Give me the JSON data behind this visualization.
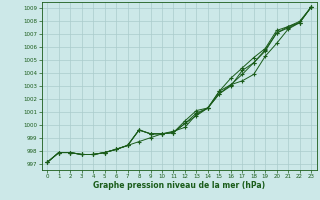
{
  "xlabel": "Graphe pression niveau de la mer (hPa)",
  "ylim": [
    996.5,
    1009.5
  ],
  "xlim": [
    -0.5,
    23.5
  ],
  "yticks": [
    997,
    998,
    999,
    1000,
    1001,
    1002,
    1003,
    1004,
    1005,
    1006,
    1007,
    1008,
    1009
  ],
  "xticks": [
    0,
    1,
    2,
    3,
    4,
    5,
    6,
    7,
    8,
    9,
    10,
    11,
    12,
    13,
    14,
    15,
    16,
    17,
    18,
    19,
    20,
    21,
    22,
    23
  ],
  "bg_color": "#cce8e8",
  "grid_color": "#aacccc",
  "line_color": "#1a5c1a",
  "series1": [
    997.1,
    997.85,
    997.85,
    997.7,
    997.7,
    997.85,
    998.1,
    998.4,
    998.7,
    999.0,
    999.3,
    999.5,
    999.8,
    1000.8,
    1001.3,
    1002.4,
    1003.0,
    1004.2,
    1004.8,
    1005.7,
    1007.1,
    1007.5,
    1007.9,
    1009.1
  ],
  "series2": [
    997.1,
    997.85,
    997.85,
    997.7,
    997.7,
    997.85,
    998.1,
    998.4,
    999.6,
    999.3,
    999.3,
    999.4,
    1000.1,
    1000.7,
    1001.3,
    1002.4,
    1003.1,
    1003.4,
    1003.9,
    1005.3,
    1006.3,
    1007.4,
    1007.9,
    1009.1
  ],
  "series3": [
    997.1,
    997.85,
    997.85,
    997.7,
    997.7,
    997.85,
    998.1,
    998.4,
    999.6,
    999.3,
    999.3,
    999.4,
    1000.3,
    1001.1,
    1001.3,
    1002.6,
    1003.6,
    1004.4,
    1005.2,
    1005.9,
    1007.3,
    1007.6,
    1008.0,
    1009.1
  ],
  "series4": [
    997.1,
    997.85,
    997.85,
    997.7,
    997.7,
    997.85,
    998.1,
    998.4,
    999.6,
    999.3,
    999.3,
    999.4,
    1000.1,
    1000.9,
    1001.3,
    1002.6,
    1003.1,
    1003.9,
    1004.8,
    1005.8,
    1007.1,
    1007.6,
    1007.9,
    1009.1
  ]
}
